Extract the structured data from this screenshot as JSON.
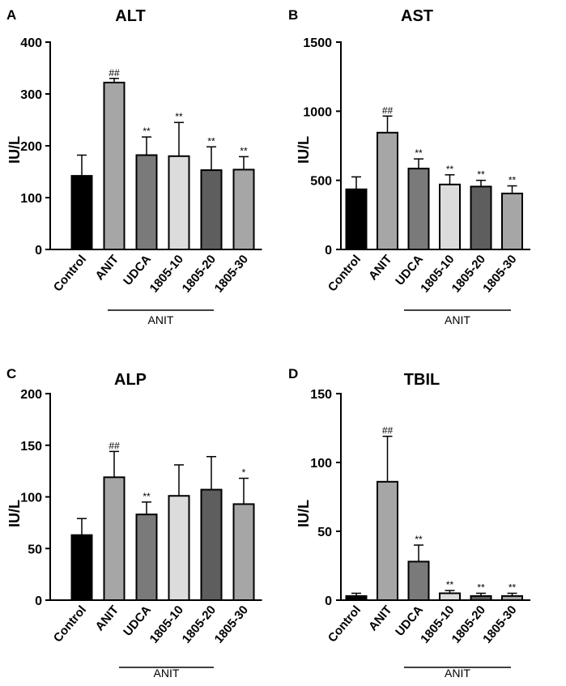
{
  "chart_data": [
    {
      "type": "bar",
      "panel_letter": "A",
      "title": "ALT",
      "ylabel": "IU/L",
      "xlabel": "",
      "ylim": [
        0,
        400
      ],
      "yticks": [
        0,
        100,
        200,
        300,
        400
      ],
      "categories": [
        "Control",
        "ANIT",
        "UDCA",
        "1805-10",
        "1805-20",
        "1805-30"
      ],
      "values": [
        142,
        322,
        182,
        180,
        153,
        154
      ],
      "errors": [
        40,
        8,
        35,
        65,
        45,
        25
      ],
      "significance": [
        "",
        "##",
        "**",
        "**",
        "**",
        "**"
      ],
      "bar_colors": [
        "#000000",
        "#a6a6a6",
        "#7a7a7a",
        "#dcdcdc",
        "#5e5e5e",
        "#a6a6a6"
      ],
      "group_label": "ANIT",
      "group_span": [
        2,
        4
      ]
    },
    {
      "type": "bar",
      "panel_letter": "B",
      "title": "AST",
      "ylabel": "IU/L",
      "xlabel": "",
      "ylim": [
        0,
        1500
      ],
      "yticks": [
        0,
        500,
        1000,
        1500
      ],
      "categories": [
        "Control",
        "ANIT",
        "UDCA",
        "1805-10",
        "1805-20",
        "1805-30"
      ],
      "values": [
        435,
        845,
        585,
        470,
        455,
        405
      ],
      "errors": [
        90,
        120,
        70,
        70,
        45,
        55
      ],
      "significance": [
        "",
        "##",
        "**",
        "**",
        "**",
        "**"
      ],
      "bar_colors": [
        "#000000",
        "#a6a6a6",
        "#7a7a7a",
        "#dcdcdc",
        "#5e5e5e",
        "#a6a6a6"
      ],
      "group_label": "ANIT",
      "group_span": [
        2,
        5
      ]
    },
    {
      "type": "bar",
      "panel_letter": "C",
      "title": "ALP",
      "ylabel": "IU/L",
      "xlabel": "",
      "ylim": [
        0,
        200
      ],
      "yticks": [
        0,
        50,
        100,
        150,
        200
      ],
      "categories": [
        "Control",
        "ANIT",
        "UDCA",
        "1805-10",
        "1805-20",
        "1805-30"
      ],
      "values": [
        63,
        119,
        83,
        101,
        107,
        93
      ],
      "errors": [
        16,
        25,
        12,
        30,
        32,
        25
      ],
      "significance": [
        "",
        "##",
        "**",
        "",
        "",
        "*"
      ],
      "bar_colors": [
        "#000000",
        "#a6a6a6",
        "#7a7a7a",
        "#dcdcdc",
        "#5e5e5e",
        "#a6a6a6"
      ],
      "group_label": "ANIT",
      "group_span": [
        2,
        4
      ]
    },
    {
      "type": "bar",
      "panel_letter": "D",
      "title": "TBIL",
      "ylabel": "IU/L",
      "xlabel": "",
      "ylim": [
        0,
        150
      ],
      "yticks": [
        0,
        50,
        100,
        150
      ],
      "categories": [
        "Control",
        "ANIT",
        "UDCA",
        "1805-10",
        "1805-20",
        "1805-30"
      ],
      "values": [
        3,
        86,
        28,
        5,
        3,
        3
      ],
      "errors": [
        2,
        33,
        12,
        2,
        2,
        2
      ],
      "significance": [
        "",
        "##",
        "**",
        "**",
        "**",
        "**"
      ],
      "bar_colors": [
        "#000000",
        "#a6a6a6",
        "#7a7a7a",
        "#dcdcdc",
        "#5e5e5e",
        "#a6a6a6"
      ],
      "group_label": "ANIT",
      "group_span": [
        2,
        5
      ]
    }
  ]
}
